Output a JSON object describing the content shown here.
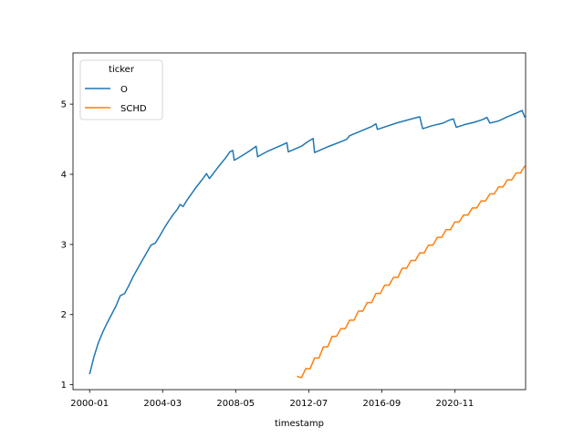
{
  "chart_data": {
    "type": "line",
    "title": "",
    "xlabel": "timestamp",
    "ylabel": "",
    "x_type": "date",
    "xlim": [
      "1999-01-20",
      "2024-11-15"
    ],
    "ylim": [
      0.93,
      5.73
    ],
    "x_ticks": [
      "2000-01",
      "2004-03",
      "2008-05",
      "2012-07",
      "2016-09",
      "2020-11"
    ],
    "y_ticks": [
      1,
      2,
      3,
      4,
      5
    ],
    "grid": false,
    "legend": {
      "title": "ticker",
      "placement": "top-left"
    },
    "colors": {
      "O": "#1f77b4",
      "SCHD": "#ff7f0e"
    },
    "series": [
      {
        "name": "O",
        "color": "#1f77b4",
        "points": [
          [
            "2000-01",
            1.15
          ],
          [
            "2000-04",
            1.4
          ],
          [
            "2000-07",
            1.6
          ],
          [
            "2000-10",
            1.75
          ],
          [
            "2001-01",
            1.88
          ],
          [
            "2001-04",
            2.0
          ],
          [
            "2001-07",
            2.12
          ],
          [
            "2001-10",
            2.27
          ],
          [
            "2002-01",
            2.3
          ],
          [
            "2002-04",
            2.42
          ],
          [
            "2002-07",
            2.55
          ],
          [
            "2002-10",
            2.66
          ],
          [
            "2003-01",
            2.77
          ],
          [
            "2003-04",
            2.88
          ],
          [
            "2003-07",
            2.99
          ],
          [
            "2003-10",
            3.02
          ],
          [
            "2004-01",
            3.12
          ],
          [
            "2004-04",
            3.23
          ],
          [
            "2004-07",
            3.33
          ],
          [
            "2004-10",
            3.42
          ],
          [
            "2005-01",
            3.5
          ],
          [
            "2005-03",
            3.57
          ],
          [
            "2005-05",
            3.54
          ],
          [
            "2005-07",
            3.61
          ],
          [
            "2005-10",
            3.7
          ],
          [
            "2006-01",
            3.79
          ],
          [
            "2006-04",
            3.87
          ],
          [
            "2006-07",
            3.95
          ],
          [
            "2006-09",
            4.01
          ],
          [
            "2006-11",
            3.94
          ],
          [
            "2007-02",
            4.02
          ],
          [
            "2007-06",
            4.13
          ],
          [
            "2007-10",
            4.23
          ],
          [
            "2008-01",
            4.32
          ],
          [
            "2008-03",
            4.34
          ],
          [
            "2008-04",
            4.2
          ],
          [
            "2008-09",
            4.26
          ],
          [
            "2009-03",
            4.34
          ],
          [
            "2009-07",
            4.4
          ],
          [
            "2009-08",
            4.25
          ],
          [
            "2010-03",
            4.33
          ],
          [
            "2011-01",
            4.42
          ],
          [
            "2011-04",
            4.45
          ],
          [
            "2011-05",
            4.32
          ],
          [
            "2012-02",
            4.4
          ],
          [
            "2012-06",
            4.46
          ],
          [
            "2012-10",
            4.51
          ],
          [
            "2012-11",
            4.31
          ],
          [
            "2013-09",
            4.4
          ],
          [
            "2014-07",
            4.48
          ],
          [
            "2014-09",
            4.5
          ],
          [
            "2014-11",
            4.55
          ],
          [
            "2015-06",
            4.61
          ],
          [
            "2016-02",
            4.68
          ],
          [
            "2016-05",
            4.72
          ],
          [
            "2016-06",
            4.64
          ],
          [
            "2017-07",
            4.73
          ],
          [
            "2018-09",
            4.81
          ],
          [
            "2018-11",
            4.82
          ],
          [
            "2019-01",
            4.65
          ],
          [
            "2019-07",
            4.69
          ],
          [
            "2020-03",
            4.73
          ],
          [
            "2020-07",
            4.77
          ],
          [
            "2020-10",
            4.79
          ],
          [
            "2020-12",
            4.67
          ],
          [
            "2021-06",
            4.71
          ],
          [
            "2021-12",
            4.74
          ],
          [
            "2022-06",
            4.78
          ],
          [
            "2022-09",
            4.81
          ],
          [
            "2022-11",
            4.73
          ],
          [
            "2023-05",
            4.76
          ],
          [
            "2023-11",
            4.82
          ],
          [
            "2024-05",
            4.87
          ],
          [
            "2024-09",
            4.91
          ],
          [
            "2024-11",
            4.81
          ]
        ]
      },
      {
        "name": "SCHD",
        "color": "#ff7f0e",
        "points": [
          [
            "2011-11",
            1.12
          ],
          [
            "2012-02",
            1.1
          ],
          [
            "2012-05",
            1.23
          ],
          [
            "2012-08",
            1.23
          ],
          [
            "2012-11",
            1.38
          ],
          [
            "2013-02",
            1.38
          ],
          [
            "2013-05",
            1.54
          ],
          [
            "2013-08",
            1.54
          ],
          [
            "2013-11",
            1.69
          ],
          [
            "2014-02",
            1.69
          ],
          [
            "2014-05",
            1.8
          ],
          [
            "2014-08",
            1.8
          ],
          [
            "2014-11",
            1.92
          ],
          [
            "2015-02",
            1.92
          ],
          [
            "2015-05",
            2.05
          ],
          [
            "2015-08",
            2.05
          ],
          [
            "2015-11",
            2.17
          ],
          [
            "2016-02",
            2.17
          ],
          [
            "2016-05",
            2.3
          ],
          [
            "2016-08",
            2.3
          ],
          [
            "2016-11",
            2.42
          ],
          [
            "2017-02",
            2.42
          ],
          [
            "2017-05",
            2.53
          ],
          [
            "2017-08",
            2.53
          ],
          [
            "2017-11",
            2.66
          ],
          [
            "2018-02",
            2.66
          ],
          [
            "2018-05",
            2.77
          ],
          [
            "2018-08",
            2.77
          ],
          [
            "2018-11",
            2.88
          ],
          [
            "2019-02",
            2.88
          ],
          [
            "2019-05",
            2.99
          ],
          [
            "2019-08",
            2.99
          ],
          [
            "2019-11",
            3.1
          ],
          [
            "2020-02",
            3.1
          ],
          [
            "2020-05",
            3.21
          ],
          [
            "2020-08",
            3.21
          ],
          [
            "2020-11",
            3.32
          ],
          [
            "2021-02",
            3.32
          ],
          [
            "2021-05",
            3.42
          ],
          [
            "2021-08",
            3.42
          ],
          [
            "2021-11",
            3.52
          ],
          [
            "2022-02",
            3.52
          ],
          [
            "2022-05",
            3.62
          ],
          [
            "2022-08",
            3.62
          ],
          [
            "2022-11",
            3.72
          ],
          [
            "2023-02",
            3.72
          ],
          [
            "2023-05",
            3.82
          ],
          [
            "2023-08",
            3.82
          ],
          [
            "2023-11",
            3.92
          ],
          [
            "2024-02",
            3.92
          ],
          [
            "2024-05",
            4.02
          ],
          [
            "2024-08",
            4.02
          ],
          [
            "2024-11",
            4.12
          ]
        ]
      }
    ]
  }
}
